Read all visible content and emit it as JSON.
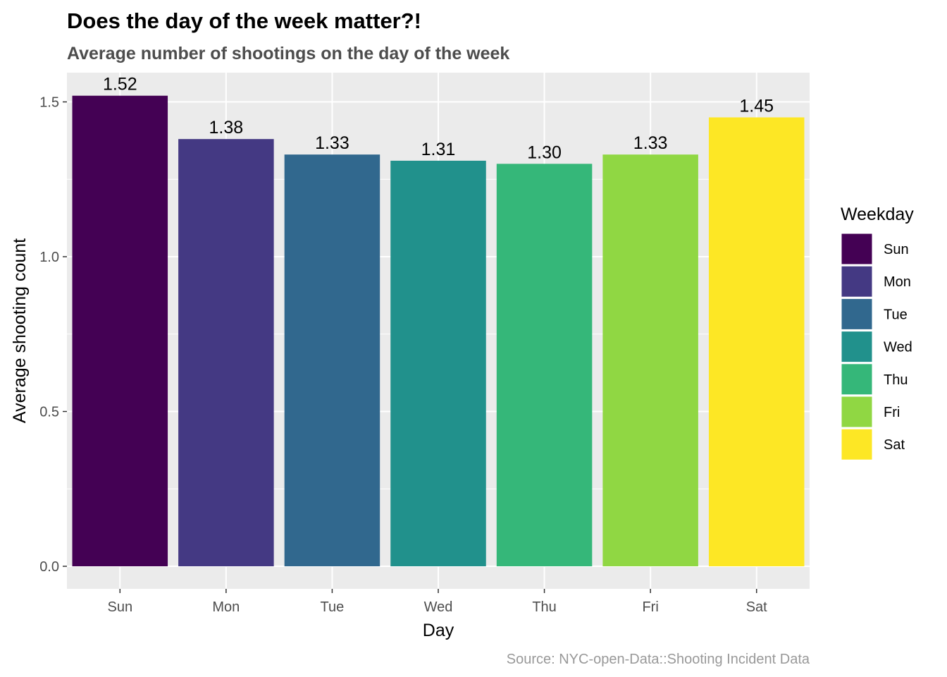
{
  "chart_data": {
    "type": "bar",
    "title": "Does the day of the week matter?!",
    "subtitle": "Average number of shootings on the day of the week",
    "xlabel": "Day",
    "ylabel": "Average shooting count",
    "categories": [
      "Sun",
      "Mon",
      "Tue",
      "Wed",
      "Thu",
      "Fri",
      "Sat"
    ],
    "values": [
      1.52,
      1.38,
      1.33,
      1.31,
      1.3,
      1.33,
      1.45
    ],
    "data_labels": [
      "1.52",
      "1.38",
      "1.33",
      "1.31",
      "1.30",
      "1.33",
      "1.45"
    ],
    "colors": [
      "#440154",
      "#443983",
      "#31688e",
      "#21918c",
      "#35b779",
      "#90d743",
      "#fde725"
    ],
    "ylim": [
      0,
      1.6
    ],
    "yticks": [
      0.0,
      0.5,
      1.0,
      1.5
    ],
    "ytick_labels": [
      "0.0",
      "0.5",
      "1.0",
      "1.5"
    ],
    "grid": true,
    "panel_background": "#ebebeb",
    "legend": {
      "title": "Weekday",
      "placement": "right",
      "entries": [
        "Sun",
        "Mon",
        "Tue",
        "Wed",
        "Thu",
        "Fri",
        "Sat"
      ]
    },
    "caption": "Source: NYC-open-Data::Shooting Incident Data"
  }
}
